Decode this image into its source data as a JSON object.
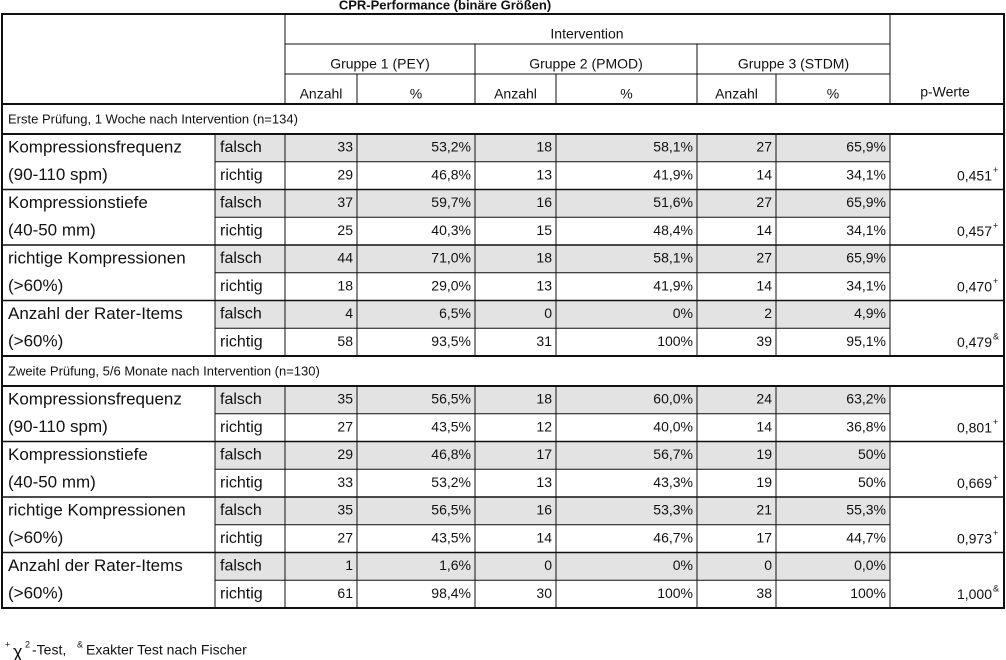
{
  "title": "CPR-Performance (binäre Größen)",
  "header": {
    "intervention": "Intervention",
    "groups": [
      "Gruppe 1 (PEY)",
      "Gruppe 2 (PMOD)",
      "Gruppe 3 (STDM)"
    ],
    "count": "Anzahl",
    "percent": "%",
    "p": "p-Werte"
  },
  "sections": [
    {
      "label": "Erste Prüfung, 1 Woche nach Intervention (n=134)",
      "items": [
        {
          "name": [
            "Kompressionsfrequenz",
            "(90-110 spm)"
          ],
          "rows": [
            {
              "outcome": "falsch",
              "cells": [
                "33",
                "53,2%",
                "18",
                "58,1%",
                "27",
                "65,9%"
              ]
            },
            {
              "outcome": "richtig",
              "cells": [
                "29",
                "46,8%",
                "13",
                "41,9%",
                "14",
                "34,1%"
              ]
            }
          ],
          "p": "0,451",
          "p_mark": "+"
        },
        {
          "name": [
            "Kompressionstiefe",
            "(40-50 mm)"
          ],
          "rows": [
            {
              "outcome": "falsch",
              "cells": [
                "37",
                "59,7%",
                "16",
                "51,6%",
                "27",
                "65,9%"
              ]
            },
            {
              "outcome": "richtig",
              "cells": [
                "25",
                "40,3%",
                "15",
                "48,4%",
                "14",
                "34,1%"
              ]
            }
          ],
          "p": "0,457",
          "p_mark": "+"
        },
        {
          "name": [
            "richtige Kompressionen",
            "(>60%)"
          ],
          "rows": [
            {
              "outcome": "falsch",
              "cells": [
                "44",
                "71,0%",
                "18",
                "58,1%",
                "27",
                "65,9%"
              ]
            },
            {
              "outcome": "richtig",
              "cells": [
                "18",
                "29,0%",
                "13",
                "41,9%",
                "14",
                "34,1%"
              ]
            }
          ],
          "p": "0,470",
          "p_mark": "+"
        },
        {
          "name": [
            "Anzahl der Rater-Items",
            "(>60%)"
          ],
          "rows": [
            {
              "outcome": "falsch",
              "cells": [
                "4",
                "6,5%",
                "0",
                "0%",
                "2",
                "4,9%"
              ]
            },
            {
              "outcome": "richtig",
              "cells": [
                "58",
                "93,5%",
                "31",
                "100%",
                "39",
                "95,1%"
              ]
            }
          ],
          "p": "0,479",
          "p_mark": "&"
        }
      ]
    },
    {
      "label": "Zweite Prüfung, 5/6 Monate nach Intervention (n=130)",
      "items": [
        {
          "name": [
            "Kompressionsfrequenz",
            "(90-110 spm)"
          ],
          "rows": [
            {
              "outcome": "falsch",
              "cells": [
                "35",
                "56,5%",
                "18",
                "60,0%",
                "24",
                "63,2%"
              ]
            },
            {
              "outcome": "richtig",
              "cells": [
                "27",
                "43,5%",
                "12",
                "40,0%",
                "14",
                "36,8%"
              ]
            }
          ],
          "p": "0,801",
          "p_mark": "+"
        },
        {
          "name": [
            "Kompressionstiefe",
            "(40-50 mm)"
          ],
          "rows": [
            {
              "outcome": "falsch",
              "cells": [
                "29",
                "46,8%",
                "17",
                "56,7%",
                "19",
                "50%"
              ]
            },
            {
              "outcome": "richtig",
              "cells": [
                "33",
                "53,2%",
                "13",
                "43,3%",
                "19",
                "50%"
              ]
            }
          ],
          "p": "0,669",
          "p_mark": "+"
        },
        {
          "name": [
            "richtige Kompressionen",
            "(>60%)"
          ],
          "rows": [
            {
              "outcome": "falsch",
              "cells": [
                "35",
                "56,5%",
                "16",
                "53,3%",
                "21",
                "55,3%"
              ]
            },
            {
              "outcome": "richtig",
              "cells": [
                "27",
                "43,5%",
                "14",
                "46,7%",
                "17",
                "44,7%"
              ]
            }
          ],
          "p": "0,973",
          "p_mark": "+"
        },
        {
          "name": [
            "Anzahl der Rater-Items",
            "(>60%)"
          ],
          "rows": [
            {
              "outcome": "falsch",
              "cells": [
                "1",
                "1,6%",
                "0",
                "0%",
                "0",
                "0,0%"
              ]
            },
            {
              "outcome": "richtig",
              "cells": [
                "61",
                "98,4%",
                "30",
                "100%",
                "38",
                "100%"
              ]
            }
          ],
          "p": "1,000",
          "p_mark": "&"
        }
      ]
    }
  ],
  "footnote": {
    "mark1": "+",
    "chi": "χ",
    "exp": "2",
    "text1": "-Test,",
    "mark2": "&",
    "text2": "Exakter Test nach Fischer"
  }
}
